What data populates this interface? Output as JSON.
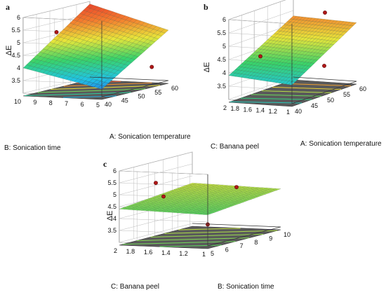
{
  "chart_data": [
    {
      "type": "surface",
      "panel_label": "a",
      "zlabel": "ΔE",
      "xlabel": "A: Sonication temperature",
      "ylabel": "B: Sonication time",
      "x_ticks": [
        "40",
        "45",
        "50",
        "55",
        "60"
      ],
      "y_ticks": [
        "5",
        "6",
        "7",
        "8",
        "9",
        "10"
      ],
      "z_ticks": [
        "3.5",
        "4",
        "4.5",
        "5",
        "5.5",
        "6"
      ],
      "x_range": [
        40,
        60
      ],
      "y_range": [
        5,
        10
      ],
      "zlim": [
        3,
        6
      ],
      "surface_corners": {
        "x40_y5": 3.3,
        "x60_y5": 5.0,
        "x40_y10": 4.0,
        "x60_y10": 5.9
      },
      "design_points": [
        {
          "x": 50,
          "y": 10,
          "z": 5.1
        },
        {
          "x": 55,
          "y": 5,
          "z": 3.7
        }
      ],
      "colormap": [
        "#2a4bd7",
        "#20c4e6",
        "#39d36a",
        "#e8e53a",
        "#f47a2e",
        "#e83a2a"
      ]
    },
    {
      "type": "surface",
      "panel_label": "b",
      "zlabel": "ΔE",
      "xlabel": "A: Sonication temperature",
      "ylabel": "C: Banana peel",
      "x_ticks": [
        "40",
        "45",
        "50",
        "55",
        "60"
      ],
      "y_ticks": [
        "1",
        "1.2",
        "1.4",
        "1.6",
        "1.8",
        "2"
      ],
      "z_ticks": [
        "3.5",
        "4",
        "4.5",
        "5",
        "5.5",
        "6"
      ],
      "x_range": [
        40,
        60
      ],
      "y_range": [
        1,
        2
      ],
      "zlim": [
        3,
        6
      ],
      "surface_corners": {
        "x40_y1": 3.7,
        "x60_y1": 5.2,
        "x40_y2": 3.9,
        "x60_y2": 5.3
      },
      "design_points": [
        {
          "x": 40,
          "y": 1.5,
          "z": 4.7
        },
        {
          "x": 60,
          "y": 1.5,
          "z": 5.5
        },
        {
          "x": 50,
          "y": 1,
          "z": 4.0
        }
      ],
      "colormap": [
        "#2a4bd7",
        "#20c4e6",
        "#39d36a",
        "#e8e53a",
        "#f47a2e",
        "#e83a2a"
      ]
    },
    {
      "type": "surface",
      "panel_label": "c",
      "zlabel": "ΔE",
      "xlabel": "B: Sonication time",
      "ylabel": "C: Banana peel",
      "x_ticks": [
        "5",
        "6",
        "7",
        "8",
        "9",
        "10"
      ],
      "y_ticks": [
        "1",
        "1.2",
        "1.4",
        "1.6",
        "1.8",
        "2"
      ],
      "z_ticks": [
        "3.5",
        "4",
        "4.5",
        "5",
        "5.5",
        "6"
      ],
      "x_range": [
        5,
        10
      ],
      "y_range": [
        1,
        2
      ],
      "zlim": [
        3,
        6
      ],
      "surface_corners": {
        "x5_y1": 4.3,
        "x10_y1": 4.6,
        "x5_y2": 4.4,
        "x10_y2": 4.7
      },
      "design_points": [
        {
          "x": 5,
          "y": 1.5,
          "z": 5.0
        },
        {
          "x": 7.5,
          "y": 2,
          "z": 5.1
        },
        {
          "x": 10,
          "y": 1.5,
          "z": 4.6
        },
        {
          "x": 5,
          "y": 1,
          "z": 3.9
        }
      ],
      "colormap": [
        "#2a4bd7",
        "#20c4e6",
        "#39d36a",
        "#e8e53a",
        "#f47a2e",
        "#e83a2a"
      ]
    }
  ]
}
